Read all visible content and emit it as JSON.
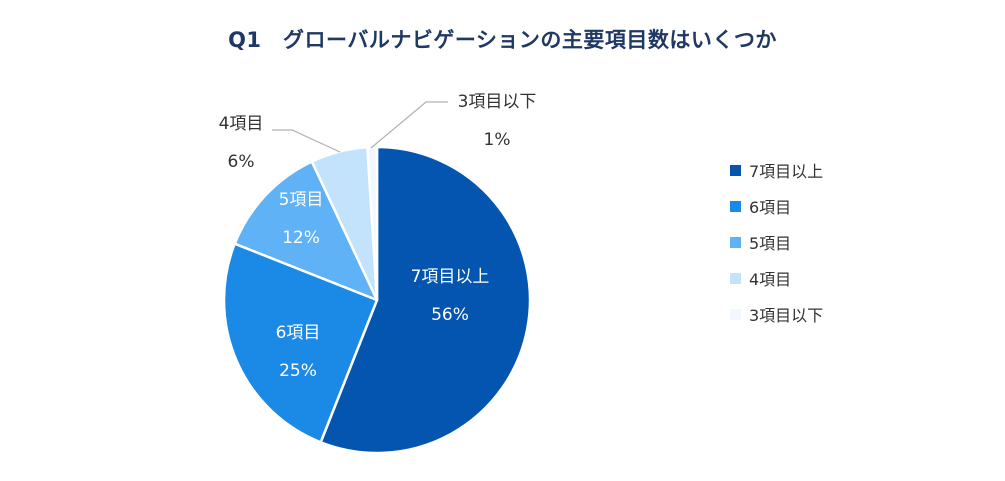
{
  "chart_data": {
    "type": "pie",
    "title": "Q1　グローバルナビゲーションの主要項目数はいくつか",
    "categories": [
      "7項目以上",
      "6項目",
      "5項目",
      "4項目",
      "3項目以下"
    ],
    "values": [
      56,
      25,
      12,
      6,
      1
    ],
    "value_labels": [
      "56%",
      "25%",
      "12%",
      "6%",
      "1%"
    ],
    "colors": [
      "#0455b0",
      "#1a8ae6",
      "#5fb2f5",
      "#c3e3fc",
      "#f2f8fe"
    ],
    "legend_placement": "right"
  }
}
